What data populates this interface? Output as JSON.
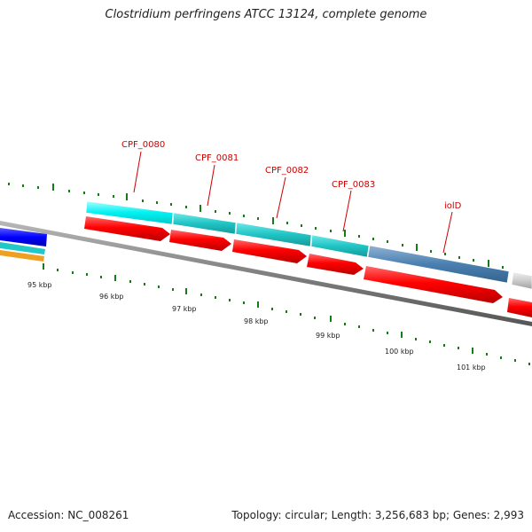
{
  "title": "Clostridium perfringens ATCC 13124, complete genome",
  "footer": {
    "accession": "Accession: NC_008261",
    "summary": "Topology: circular; Length: 3,256,683 bp; Genes: 2,993"
  },
  "gene_labels": [
    "CPF_0080",
    "CPF_0081",
    "CPF_0082",
    "CPF_0083",
    "iolD"
  ],
  "scale_labels": [
    "95 kbp",
    "96 kbp",
    "97 kbp",
    "98 kbp",
    "99 kbp",
    "100 kbp",
    "101 kbp"
  ],
  "colors": {
    "backbone": "#808080",
    "cds_forward": "#ff0000",
    "gene_cyan": "#00ffff",
    "gene_teal": "#1ec8c8",
    "gene_steelblue": "#4682b4",
    "gene_blue": "#0000ff",
    "gene_orange": "#ffa500",
    "gene_gray": "#c0c0c0",
    "ticks": "#006400",
    "label_text": "#cc0000"
  }
}
